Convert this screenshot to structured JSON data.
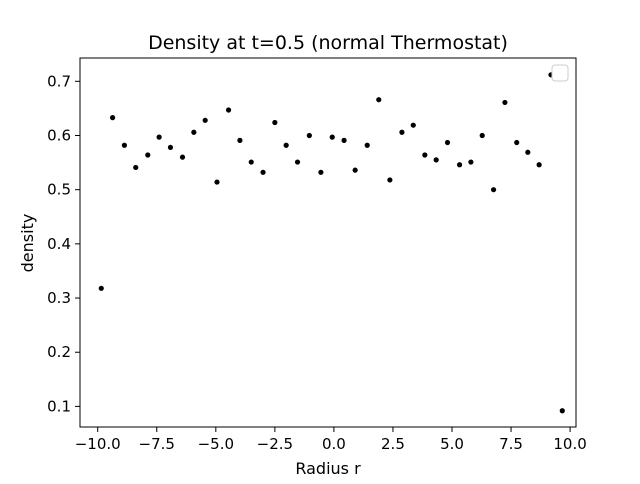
{
  "chart_data": {
    "type": "scatter",
    "title": "Density at t=0.5 (normal Thermostat)",
    "xlabel": "Radius r",
    "ylabel": "density",
    "xlim": [
      -10.75,
      10.25
    ],
    "ylim": [
      0.062,
      0.743
    ],
    "xticks": [
      -10.0,
      -7.5,
      -5.0,
      -2.5,
      0.0,
      2.5,
      5.0,
      7.5,
      10.0
    ],
    "xtick_labels": [
      "−10.0",
      "−7.5",
      "−5.0",
      "−2.5",
      "0.0",
      "2.5",
      "5.0",
      "7.5",
      "10.0"
    ],
    "yticks": [
      0.1,
      0.2,
      0.3,
      0.4,
      0.5,
      0.6,
      0.7
    ],
    "ytick_labels": [
      "0.1",
      "0.2",
      "0.3",
      "0.4",
      "0.5",
      "0.6",
      "0.7"
    ],
    "grid": false,
    "legend": {
      "placement": "top-right",
      "entries": []
    },
    "marker_color": "#000000",
    "points": [
      {
        "x": -9.85,
        "y": 0.318
      },
      {
        "x": -9.37,
        "y": 0.633
      },
      {
        "x": -8.87,
        "y": 0.582
      },
      {
        "x": -8.39,
        "y": 0.541
      },
      {
        "x": -7.88,
        "y": 0.564
      },
      {
        "x": -7.4,
        "y": 0.597
      },
      {
        "x": -6.92,
        "y": 0.578
      },
      {
        "x": -6.41,
        "y": 0.56
      },
      {
        "x": -5.93,
        "y": 0.606
      },
      {
        "x": -5.45,
        "y": 0.628
      },
      {
        "x": -4.95,
        "y": 0.514
      },
      {
        "x": -4.46,
        "y": 0.647
      },
      {
        "x": -3.98,
        "y": 0.591
      },
      {
        "x": -3.5,
        "y": 0.551
      },
      {
        "x": -3.0,
        "y": 0.532
      },
      {
        "x": -2.5,
        "y": 0.624
      },
      {
        "x": -2.02,
        "y": 0.582
      },
      {
        "x": -1.54,
        "y": 0.551
      },
      {
        "x": -1.04,
        "y": 0.6
      },
      {
        "x": -0.55,
        "y": 0.532
      },
      {
        "x": -0.07,
        "y": 0.597
      },
      {
        "x": 0.43,
        "y": 0.591
      },
      {
        "x": 0.9,
        "y": 0.536
      },
      {
        "x": 1.41,
        "y": 0.582
      },
      {
        "x": 1.9,
        "y": 0.666
      },
      {
        "x": 2.37,
        "y": 0.518
      },
      {
        "x": 2.88,
        "y": 0.606
      },
      {
        "x": 3.36,
        "y": 0.619
      },
      {
        "x": 3.85,
        "y": 0.564
      },
      {
        "x": 4.33,
        "y": 0.555
      },
      {
        "x": 4.81,
        "y": 0.587
      },
      {
        "x": 5.32,
        "y": 0.546
      },
      {
        "x": 5.8,
        "y": 0.551
      },
      {
        "x": 6.28,
        "y": 0.6
      },
      {
        "x": 6.76,
        "y": 0.5
      },
      {
        "x": 7.24,
        "y": 0.661
      },
      {
        "x": 7.74,
        "y": 0.587
      },
      {
        "x": 8.21,
        "y": 0.569
      },
      {
        "x": 8.69,
        "y": 0.546
      },
      {
        "x": 9.19,
        "y": 0.712
      },
      {
        "x": 9.67,
        "y": 0.092
      }
    ]
  }
}
